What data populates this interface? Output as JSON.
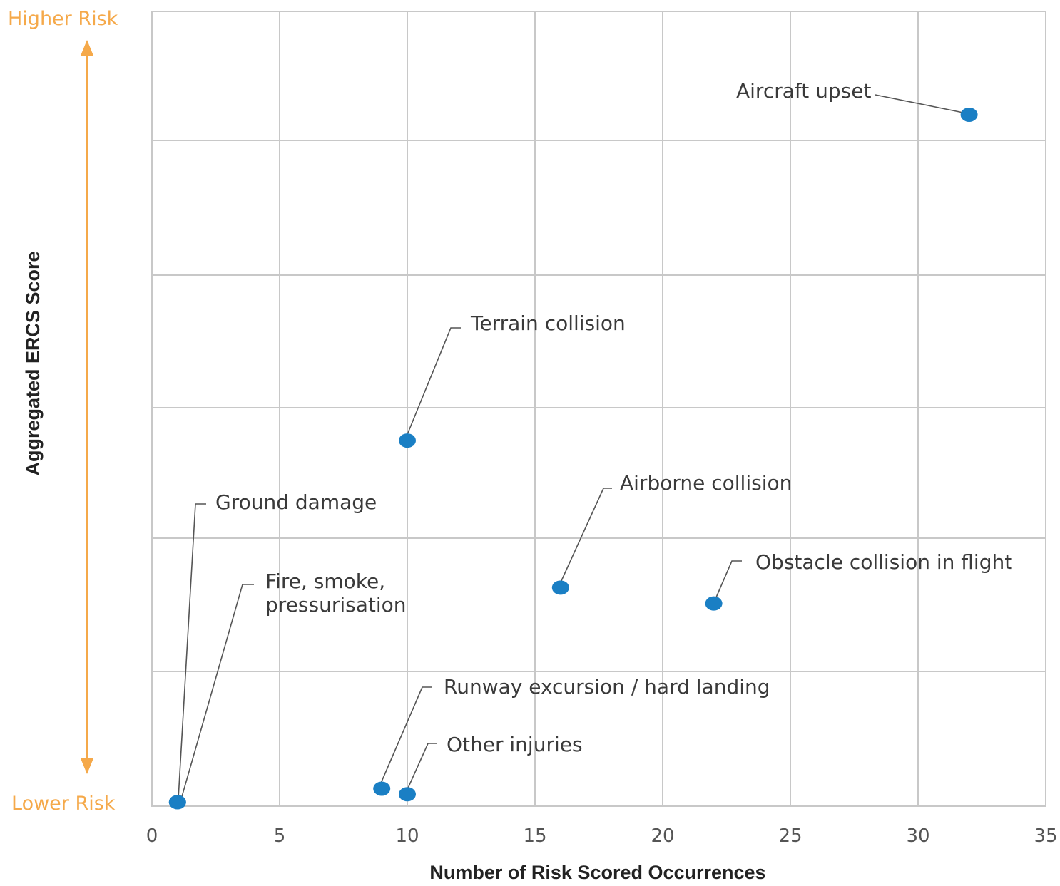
{
  "chart_data": {
    "type": "scatter",
    "xlabel": "Number of Risk Scored Occurrences",
    "ylabel": "Aggregated ERCS Score",
    "xlim": [
      0,
      35
    ],
    "x_ticks": [
      "0",
      "5",
      "10",
      "15",
      "20",
      "25",
      "30",
      "35"
    ],
    "grid": true,
    "y_axis_top_label": "Higher Risk",
    "y_axis_bottom_label": "Lower Risk",
    "points": [
      {
        "label": "Aircraft upset",
        "x": 32,
        "y": 87
      },
      {
        "label": "Terrain collision",
        "x": 10,
        "y": 46
      },
      {
        "label": "Airborne collision",
        "x": 16,
        "y": 27.5
      },
      {
        "label": "Obstacle collision in flight",
        "x": 22,
        "y": 25.5
      },
      {
        "label": "Ground damage",
        "x": 1,
        "y": 0.5
      },
      {
        "label": "Fire, smoke, pressurisation",
        "x": 1,
        "y": 0.5
      },
      {
        "label": "Runway excursion / hard landing",
        "x": 9,
        "y": 2.2
      },
      {
        "label": "Other injuries",
        "x": 10,
        "y": 1.5
      }
    ],
    "colors": {
      "point": "#1a7fc4",
      "risk_arrow": "#f5a94a",
      "risk_label": "#f5a94a",
      "grid": "#c8c8c8"
    }
  }
}
